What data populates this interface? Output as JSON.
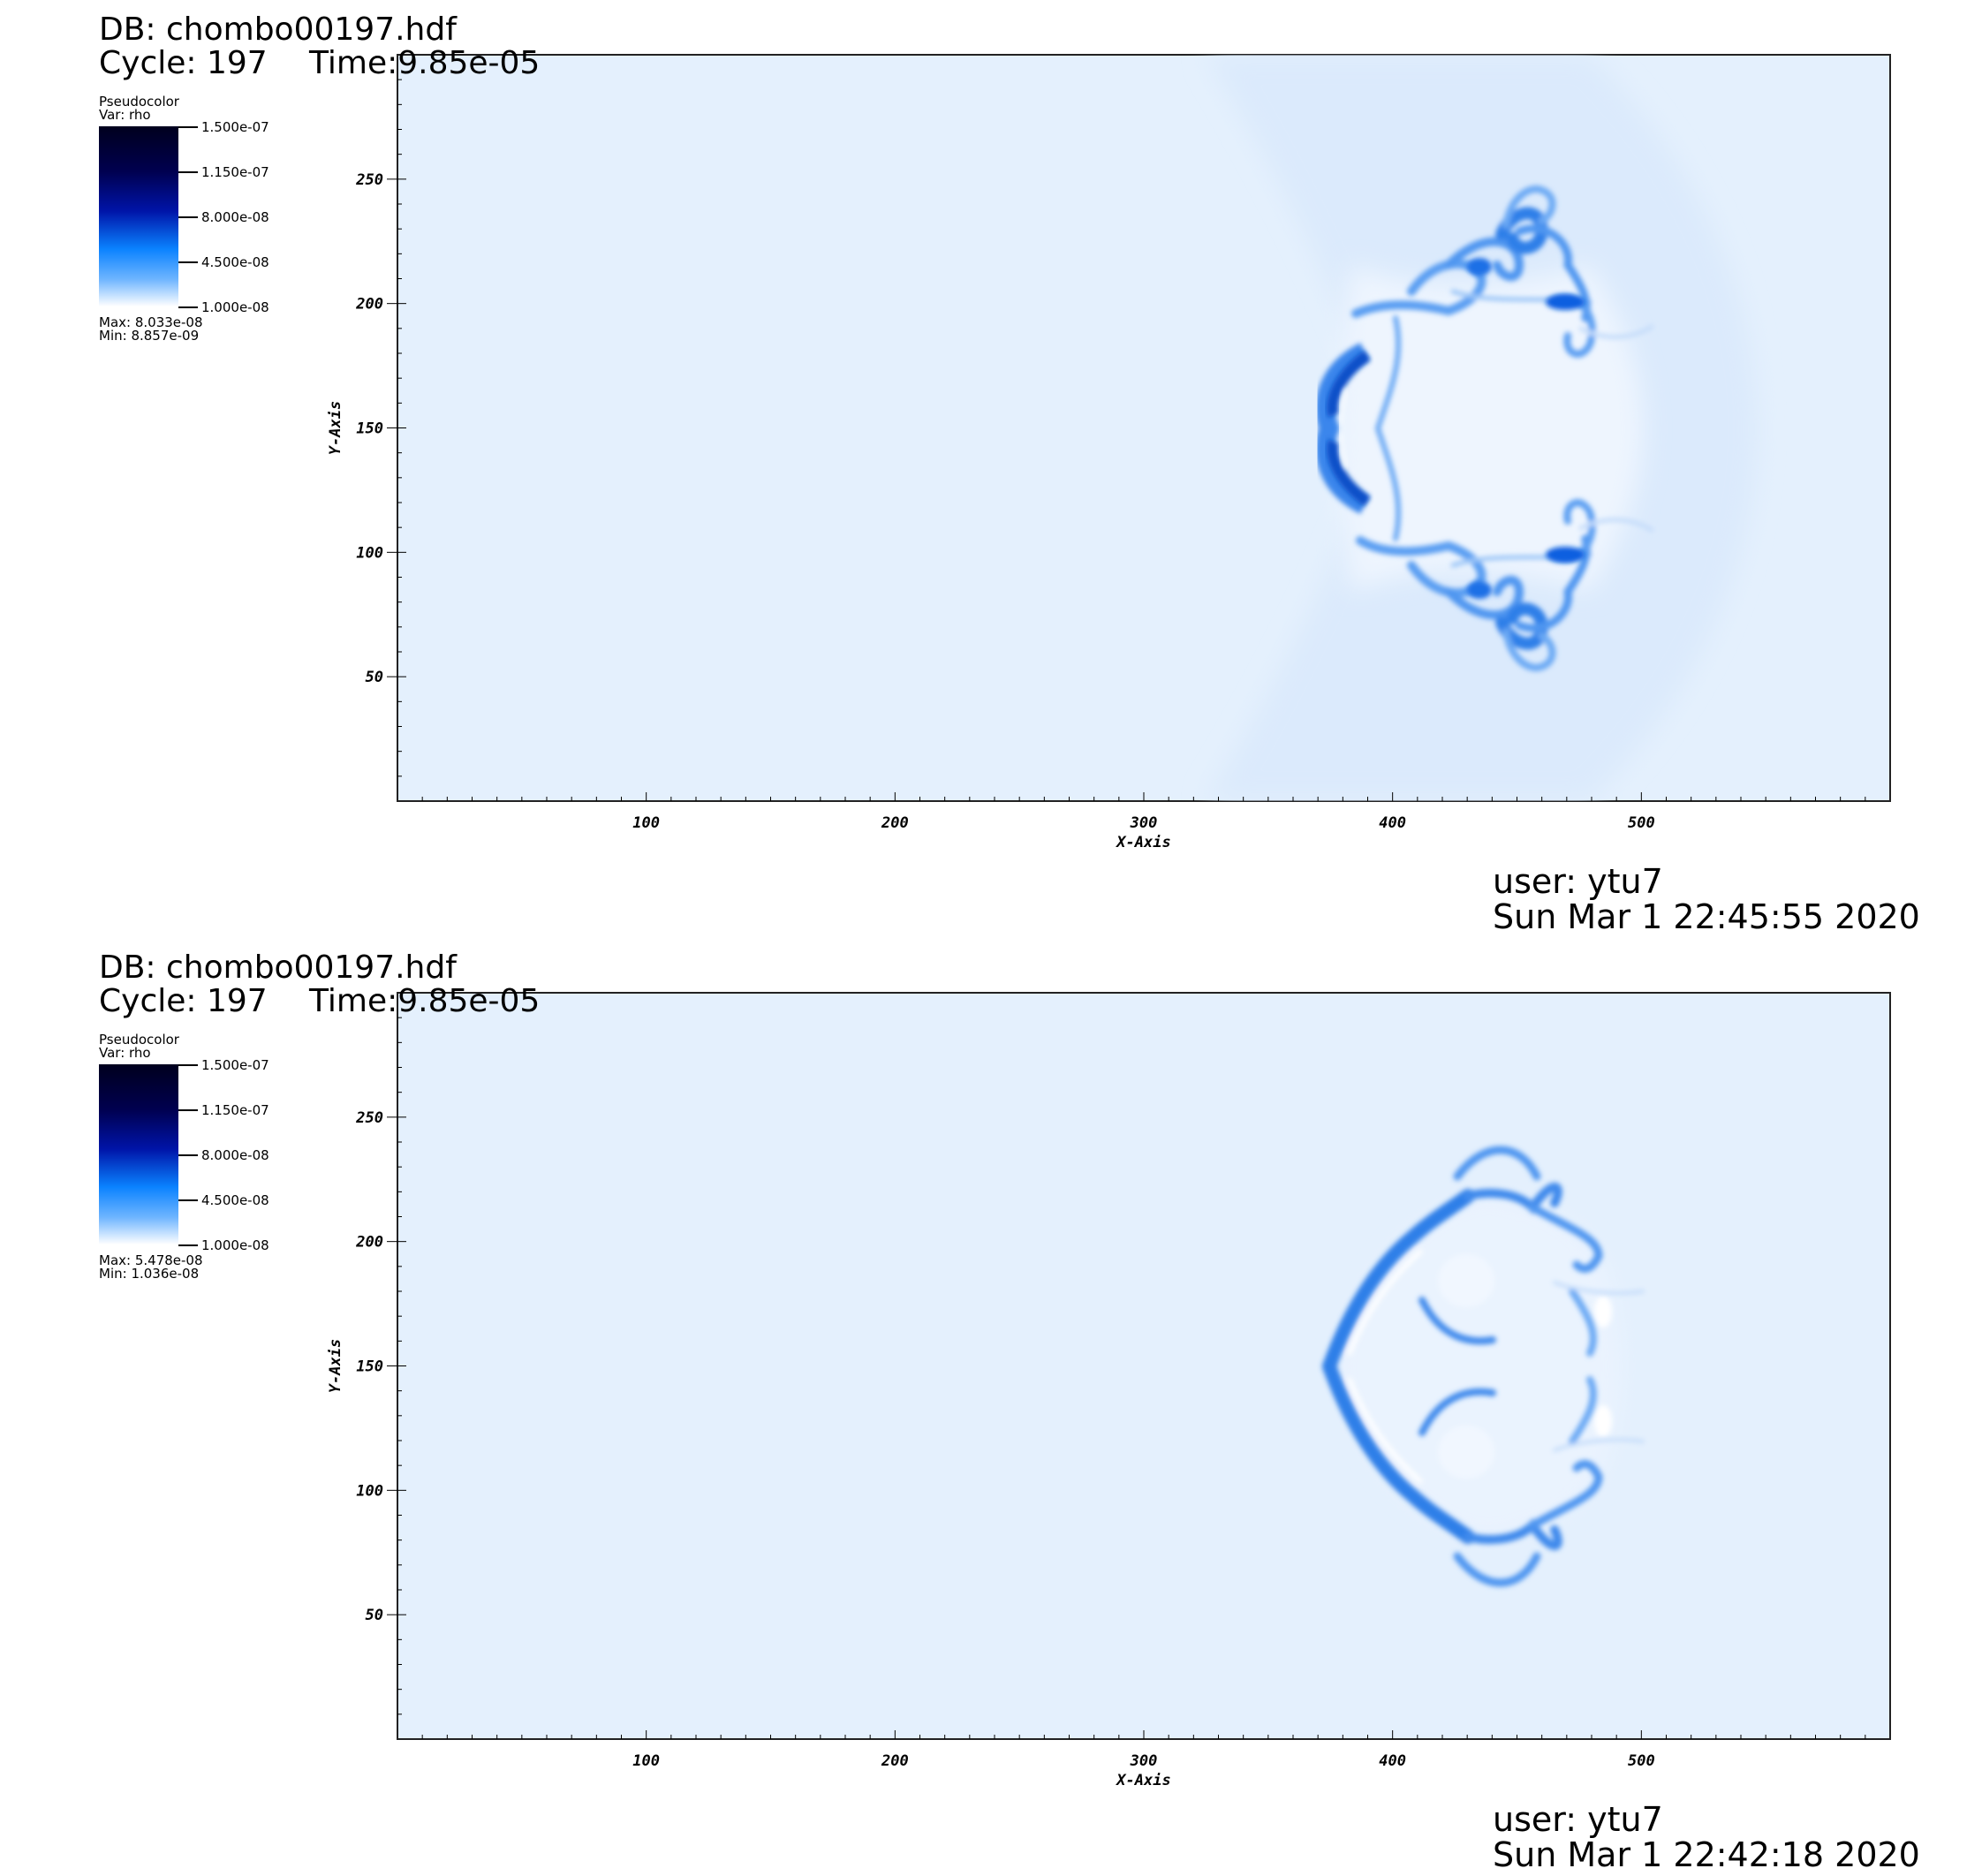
{
  "panels": [
    {
      "db_label": "DB: chombo00197.hdf",
      "cycle_label": "Cycle: 197",
      "time_label": "Time:9.85e-05",
      "legend": {
        "title": "Pseudocolor",
        "var": "Var: rho",
        "ticks": [
          "1.500e-07",
          "1.150e-07",
          "8.000e-08",
          "4.500e-08",
          "1.000e-08"
        ],
        "max": "Max:  8.033e-08",
        "min": "Min:  8.857e-09"
      },
      "user": "user: ytu7",
      "date": "Sun Mar  1 22:45:55 2020"
    },
    {
      "db_label": "DB: chombo00197.hdf",
      "cycle_label": "Cycle: 197",
      "time_label": "Time:9.85e-05",
      "legend": {
        "title": "Pseudocolor",
        "var": "Var: rho",
        "ticks": [
          "1.500e-07",
          "1.150e-07",
          "8.000e-08",
          "4.500e-08",
          "1.000e-08"
        ],
        "max": "Max:  5.478e-08",
        "min": "Min:  1.036e-08"
      },
      "user": "user: ytu7",
      "date": "Sun Mar  1 22:42:18 2020"
    }
  ],
  "chart_data": [
    {
      "type": "heatmap",
      "variable": "rho",
      "xlabel": "X-Axis",
      "ylabel": "Y-Axis",
      "xlim": [
        0,
        600
      ],
      "ylim": [
        0,
        300
      ],
      "x_ticks": [
        100,
        200,
        300,
        400,
        500
      ],
      "y_ticks": [
        50,
        100,
        150,
        200,
        250
      ],
      "colorbar_range": [
        1e-08,
        1.5e-07
      ],
      "colorbar_ticks": [
        1.5e-07,
        1.15e-07,
        8e-08,
        4.5e-08,
        1e-08
      ],
      "data_max": 8.033e-08,
      "data_min": 8.857e-09,
      "background_color": "#e4f0fd",
      "feature_color": "#0a6fe6"
    },
    {
      "type": "heatmap",
      "variable": "rho",
      "xlabel": "X-Axis",
      "ylabel": "Y-Axis",
      "xlim": [
        0,
        600
      ],
      "ylim": [
        0,
        300
      ],
      "x_ticks": [
        100,
        200,
        300,
        400,
        500
      ],
      "y_ticks": [
        50,
        100,
        150,
        200,
        250
      ],
      "colorbar_range": [
        1e-08,
        1.5e-07
      ],
      "colorbar_ticks": [
        1.5e-07,
        1.15e-07,
        8e-08,
        4.5e-08,
        1e-08
      ],
      "data_max": 5.478e-08,
      "data_min": 1.036e-08,
      "background_color": "#e4f0fd",
      "feature_color": "#0a6fe6"
    }
  ]
}
